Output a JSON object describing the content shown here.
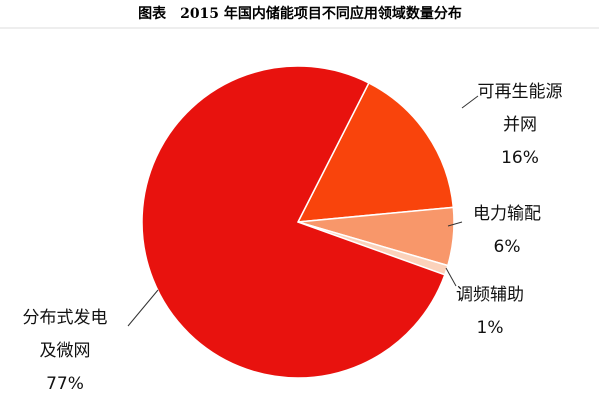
{
  "chart_data": {
    "type": "pie",
    "title": "图表　2015 年国内储能项目不同应用领域数量分布",
    "categories": [
      [
        "可再生能源",
        "并网"
      ],
      [
        "电力输配"
      ],
      [
        "调频辅助"
      ],
      [
        "分布式发电",
        "及微网"
      ]
    ],
    "values": [
      16,
      6,
      1,
      77
    ],
    "value_labels": [
      "16%",
      "6%",
      "1%",
      "77%"
    ],
    "colors": [
      "#f9440c",
      "#f8976a",
      "#fbd2bb",
      "#e8120e"
    ]
  }
}
